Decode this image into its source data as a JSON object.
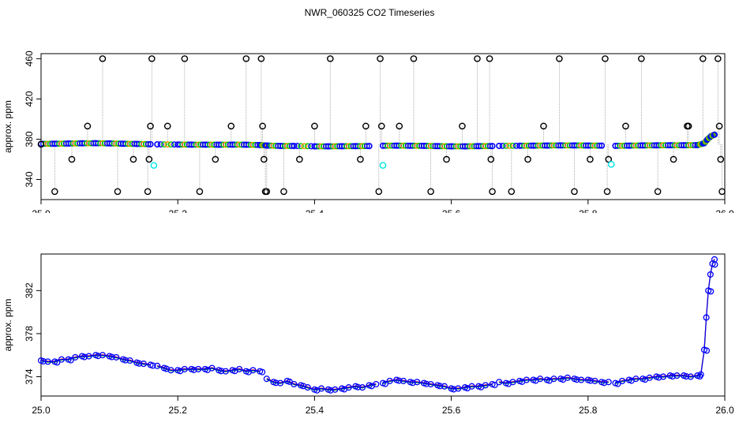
{
  "title": "NWR_060325  CO2 Timeseries",
  "chart_data": [
    {
      "type": "scatter",
      "title": "",
      "xlabel": "",
      "ylabel": "approx. ppm",
      "xlim": [
        25.0,
        26.0
      ],
      "ylim": [
        320,
        465
      ],
      "xticks": [
        25.0,
        25.2,
        25.4,
        25.6,
        25.8,
        26.0
      ],
      "xtick_labels": [
        "25.0",
        "25.2",
        "25.4",
        "25.6",
        "25.8",
        "26.0"
      ],
      "yticks": [
        340,
        380,
        420,
        460
      ],
      "ytick_labels": [
        "340",
        "380",
        "420",
        "460"
      ],
      "grid": false,
      "series": [
        {
          "color": "#0000ff",
          "x": [
            25.0,
            25.02,
            25.04,
            25.06,
            25.08,
            25.1,
            25.12,
            25.14,
            25.16,
            25.17,
            25.2,
            25.22,
            25.24,
            25.26,
            25.28,
            25.3,
            25.32,
            25.33,
            25.35,
            25.37,
            25.4,
            25.42,
            25.44,
            25.46,
            25.48,
            25.5,
            25.52,
            25.54,
            25.56,
            25.58,
            25.6,
            25.62,
            25.64,
            25.66,
            25.67,
            25.7,
            25.72,
            25.74,
            25.76,
            25.78,
            25.8,
            25.82,
            25.84,
            25.86,
            25.88,
            25.9,
            25.92,
            25.94,
            25.96,
            25.97,
            25.975,
            25.98,
            25.985
          ],
          "y": [
            375.4,
            375.5,
            375.7,
            375.9,
            376.0,
            375.8,
            375.5,
            375.3,
            375.0,
            374.9,
            374.7,
            374.6,
            374.6,
            374.5,
            374.6,
            374.5,
            374.2,
            373.7,
            373.3,
            373.3,
            372.9,
            372.9,
            373.0,
            373.1,
            373.2,
            373.5,
            373.6,
            373.5,
            373.4,
            373.1,
            372.9,
            372.9,
            373.1,
            373.2,
            373.4,
            373.5,
            373.6,
            373.7,
            373.8,
            373.8,
            373.7,
            373.6,
            373.4,
            373.6,
            373.8,
            373.9,
            374.0,
            374.0,
            374.1,
            376.0,
            380.0,
            383.0,
            384.5
          ]
        },
        {
          "color": "#000000",
          "x": [
            25.0,
            25.02,
            25.045,
            25.068,
            25.09,
            25.112,
            25.135,
            25.156,
            25.158,
            25.16,
            25.162,
            25.185,
            25.21,
            25.232,
            25.255,
            25.278,
            25.3,
            25.322,
            25.324,
            25.326,
            25.328,
            25.33,
            25.355,
            25.378,
            25.4,
            25.423,
            25.467,
            25.475,
            25.494,
            25.496,
            25.498,
            25.524,
            25.545,
            25.57,
            25.593,
            25.616,
            25.638,
            25.656,
            25.658,
            25.66,
            25.688,
            25.712,
            25.735,
            25.758,
            25.78,
            25.803,
            25.825,
            25.828,
            25.83,
            25.855,
            25.878,
            25.902,
            25.925,
            25.945,
            25.947,
            25.968,
            25.99,
            25.992,
            25.994,
            25.996
          ],
          "y": [
            375,
            328,
            360,
            393,
            460,
            328,
            360,
            328,
            360,
            393,
            460,
            393,
            460,
            328,
            360,
            393,
            460,
            460,
            393,
            360,
            328,
            328,
            328,
            360,
            393,
            460,
            360,
            393,
            328,
            460,
            393,
            393,
            460,
            328,
            360,
            393,
            460,
            460,
            360,
            328,
            328,
            360,
            393,
            460,
            328,
            360,
            460,
            328,
            360,
            393,
            460,
            328,
            360,
            393,
            393,
            460,
            460,
            393,
            360,
            328
          ]
        }
      ]
    },
    {
      "type": "line",
      "title": "",
      "xlabel": "",
      "ylabel": "approx. ppm",
      "xlim": [
        25.0,
        26.0
      ],
      "ylim": [
        372.2,
        385.4
      ],
      "xticks": [
        25.0,
        25.2,
        25.4,
        25.6,
        25.8,
        26.0
      ],
      "xtick_labels": [
        "25.0",
        "25.2",
        "25.4",
        "25.6",
        "25.8",
        "26.0"
      ],
      "yticks": [
        374,
        378,
        382
      ],
      "ytick_labels": [
        "374",
        "378",
        "382"
      ],
      "grid": false,
      "series": [
        {
          "color": "#0000ff",
          "x": [
            25.0,
            25.01,
            25.02,
            25.03,
            25.04,
            25.05,
            25.06,
            25.07,
            25.08,
            25.09,
            25.1,
            25.11,
            25.12,
            25.13,
            25.14,
            25.15,
            25.16,
            25.17,
            25.18,
            25.19,
            25.2,
            25.21,
            25.22,
            25.23,
            25.24,
            25.25,
            25.26,
            25.27,
            25.28,
            25.29,
            25.3,
            25.31,
            25.32,
            25.33,
            25.34,
            25.35,
            25.36,
            25.37,
            25.38,
            25.39,
            25.4,
            25.41,
            25.42,
            25.43,
            25.44,
            25.45,
            25.46,
            25.47,
            25.48,
            25.49,
            25.5,
            25.51,
            25.52,
            25.53,
            25.54,
            25.55,
            25.56,
            25.57,
            25.58,
            25.59,
            25.6,
            25.61,
            25.62,
            25.63,
            25.64,
            25.65,
            25.66,
            25.67,
            25.68,
            25.69,
            25.7,
            25.71,
            25.72,
            25.73,
            25.74,
            25.75,
            25.76,
            25.77,
            25.78,
            25.79,
            25.8,
            25.81,
            25.82,
            25.83,
            25.84,
            25.85,
            25.86,
            25.87,
            25.88,
            25.89,
            25.9,
            25.91,
            25.92,
            25.93,
            25.94,
            25.95,
            25.96,
            25.965,
            25.97,
            25.973,
            25.976,
            25.979,
            25.982,
            25.985
          ],
          "y": [
            375.5,
            375.4,
            375.4,
            375.6,
            375.6,
            375.8,
            375.9,
            375.9,
            376.0,
            376.0,
            375.9,
            375.8,
            375.6,
            375.5,
            375.3,
            375.2,
            375.1,
            375.0,
            374.8,
            374.6,
            374.6,
            374.7,
            374.7,
            374.7,
            374.7,
            374.8,
            374.6,
            374.5,
            374.6,
            374.7,
            374.5,
            374.6,
            374.5,
            373.8,
            373.5,
            373.4,
            373.6,
            373.3,
            373.2,
            373.0,
            372.8,
            372.9,
            372.8,
            372.8,
            372.9,
            373.0,
            373.1,
            373.0,
            373.2,
            373.3,
            373.4,
            373.6,
            373.7,
            373.6,
            373.5,
            373.5,
            373.4,
            373.3,
            373.2,
            373.1,
            372.9,
            372.9,
            373.0,
            373.1,
            373.1,
            373.2,
            373.3,
            373.5,
            373.4,
            373.5,
            373.6,
            373.7,
            373.7,
            373.8,
            373.7,
            373.8,
            373.8,
            373.9,
            373.8,
            373.7,
            373.7,
            373.6,
            373.5,
            373.5,
            373.4,
            373.6,
            373.7,
            373.8,
            373.8,
            373.9,
            374.0,
            374.0,
            374.1,
            374.1,
            374.1,
            374.0,
            374.1,
            374.2,
            376.5,
            379.5,
            382.0,
            383.5,
            384.5,
            384.9
          ]
        }
      ],
      "gaps_after_x": [
        25.16,
        25.32,
        25.49,
        25.66,
        25.83
      ]
    }
  ]
}
